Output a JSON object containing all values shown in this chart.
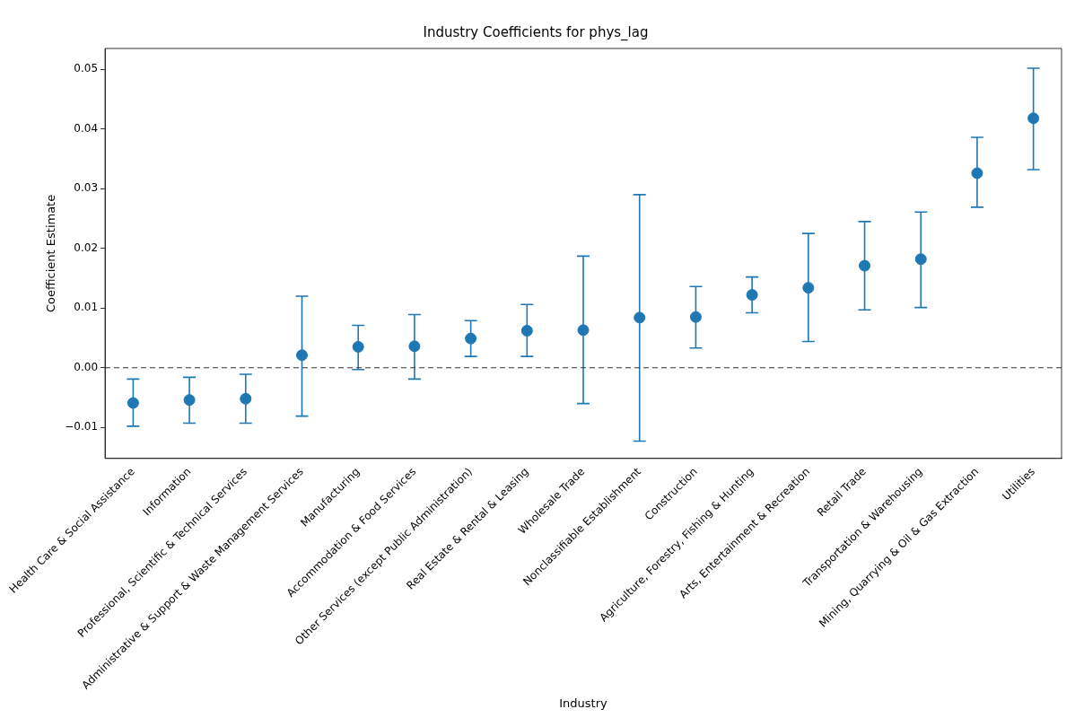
{
  "chart_data": {
    "type": "scatter",
    "title": "Industry Coefficients for phys_lag",
    "xlabel": "Industry",
    "ylabel": "Coefficient Estimate",
    "categories": [
      "Health Care & Social Assistance",
      "Information",
      "Professional, Scientific & Technical Services",
      "Administrative & Support & Waste Management Services",
      "Manufacturing",
      "Accommodation & Food Services",
      "Other Services (except Public Administration)",
      "Real Estate & Rental & Leasing",
      "Wholesale Trade",
      "Nonclassifiable Establishment",
      "Construction",
      "Agriculture, Forestry, Fishing & Hunting",
      "Arts, Entertainment & Recreation",
      "Retail Trade",
      "Transportation & Warehousing",
      "Mining, Quarrying & Oil & Gas Extraction",
      "Utilities"
    ],
    "series": [
      {
        "color": "#1f77b4",
        "values": [
          -0.0059,
          -0.0054,
          -0.0052,
          0.0021,
          0.0035,
          0.0036,
          0.0049,
          0.0062,
          0.0063,
          0.0084,
          0.0085,
          0.0122,
          0.0134,
          0.0171,
          0.0182,
          0.0326,
          0.0418
        ],
        "errors": [
          [
            -0.0098,
            -0.0019
          ],
          [
            -0.0093,
            -0.0016
          ],
          [
            -0.0093,
            -0.0011
          ],
          [
            -0.0081,
            0.012
          ],
          [
            -0.0003,
            0.0071
          ],
          [
            -0.0019,
            0.0089
          ],
          [
            0.0019,
            0.0079
          ],
          [
            0.0019,
            0.0106
          ],
          [
            -0.006,
            0.0187
          ],
          [
            -0.0123,
            0.029
          ],
          [
            0.0033,
            0.0136
          ],
          [
            0.0092,
            0.0152
          ],
          [
            0.0044,
            0.0225
          ],
          [
            0.0097,
            0.0245
          ],
          [
            0.0101,
            0.0261
          ],
          [
            0.0269,
            0.0386
          ],
          [
            0.0332,
            0.0502
          ]
        ]
      }
    ],
    "ylim": [
      -0.0152,
      0.0535
    ],
    "yticks": [
      {
        "value": -0.01,
        "label": "−0.01"
      },
      {
        "value": 0,
        "label": "0.00"
      },
      {
        "value": 0.01,
        "label": "0.01"
      },
      {
        "value": 0.02,
        "label": "0.02"
      },
      {
        "value": 0.03,
        "label": "0.03"
      },
      {
        "value": 0.04,
        "label": "0.04"
      },
      {
        "value": 0.05,
        "label": "0.05"
      }
    ],
    "ref_lines": [
      {
        "axis": "y",
        "value": 0,
        "color": "#333333",
        "line_style": "dashed"
      }
    ],
    "marker": "circle",
    "grid": false,
    "legend": false
  }
}
